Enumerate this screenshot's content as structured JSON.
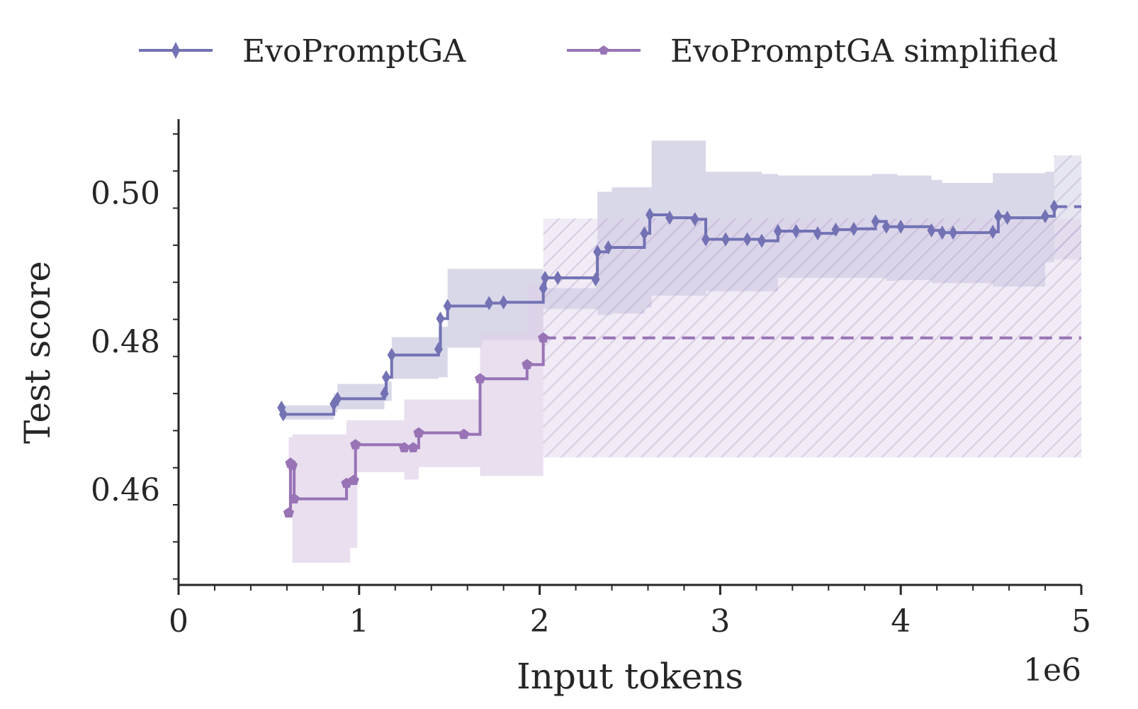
{
  "chart_data": {
    "type": "line",
    "xlabel": "Input tokens",
    "ylabel": "Test score",
    "x_offset_label": "1e6",
    "xlim": [
      0,
      5
    ],
    "ylim": [
      0.4472,
      0.51
    ],
    "x_ticks": [
      0,
      1,
      2,
      3,
      4,
      5
    ],
    "x_tick_labels": [
      "0",
      "1",
      "2",
      "3",
      "4",
      "5"
    ],
    "y_ticks": [
      0.46,
      0.48,
      0.5
    ],
    "y_tick_labels": [
      "0.46",
      "0.48",
      "0.50"
    ],
    "legend_position": "top",
    "series": [
      {
        "name": "EvoPromptGA",
        "color": "#7272b4",
        "band_color": "#c8c8e0",
        "marker": "diamond",
        "x": [
          0.57,
          0.58,
          0.86,
          0.88,
          1.14,
          1.15,
          1.18,
          1.44,
          1.45,
          1.49,
          1.72,
          1.8,
          2.02,
          2.03,
          2.1,
          2.31,
          2.32,
          2.38,
          2.58,
          2.61,
          2.72,
          2.86,
          2.92,
          3.03,
          3.15,
          3.23,
          3.32,
          3.42,
          3.54,
          3.64,
          3.74,
          3.86,
          3.92,
          4.0,
          4.17,
          4.23,
          4.29,
          4.51,
          4.54,
          4.59,
          4.8,
          4.85
        ],
        "y": [
          0.4711,
          0.4702,
          0.4716,
          0.4723,
          0.473,
          0.4752,
          0.4782,
          0.479,
          0.4831,
          0.4848,
          0.4852,
          0.4853,
          0.4872,
          0.4886,
          0.4886,
          0.4884,
          0.4921,
          0.4927,
          0.4946,
          0.4971,
          0.4967,
          0.4965,
          0.4938,
          0.4938,
          0.4938,
          0.4936,
          0.4949,
          0.4949,
          0.4946,
          0.4951,
          0.4952,
          0.4962,
          0.4955,
          0.4955,
          0.495,
          0.4947,
          0.4947,
          0.4948,
          0.4969,
          0.4967,
          0.4969,
          0.4982
        ],
        "extension_end": 5.0,
        "band": [
          [
            0.57,
            0.4695,
            0.4714
          ],
          [
            0.86,
            0.4705,
            0.473
          ],
          [
            0.88,
            0.4709,
            0.4743
          ],
          [
            1.14,
            0.472,
            0.4746
          ],
          [
            1.18,
            0.475,
            0.4806
          ],
          [
            1.44,
            0.4752,
            0.482
          ],
          [
            1.49,
            0.4792,
            0.4898
          ],
          [
            1.68,
            0.4802,
            0.4898
          ],
          [
            2.02,
            0.4844,
            0.4872
          ],
          [
            2.31,
            0.4844,
            0.4918
          ],
          [
            2.32,
            0.4836,
            0.5002
          ],
          [
            2.4,
            0.4838,
            0.5008
          ],
          [
            2.58,
            0.4846,
            0.5008
          ],
          [
            2.62,
            0.4862,
            0.5071
          ],
          [
            2.72,
            0.4862,
            0.5071
          ],
          [
            2.92,
            0.4868,
            0.5029
          ],
          [
            3.23,
            0.4868,
            0.5026
          ],
          [
            3.32,
            0.4886,
            0.5024
          ],
          [
            3.84,
            0.4886,
            0.5026
          ],
          [
            3.92,
            0.4882,
            0.5026
          ],
          [
            3.98,
            0.4883,
            0.5024
          ],
          [
            4.17,
            0.4879,
            0.5018
          ],
          [
            4.23,
            0.4879,
            0.5014
          ],
          [
            4.51,
            0.4874,
            0.5027
          ],
          [
            4.8,
            0.4907,
            0.5029
          ],
          [
            4.85,
            0.4911,
            0.5051
          ],
          [
            5.0,
            0.4911,
            0.5051
          ]
        ]
      },
      {
        "name": "EvoPromptGA simplified",
        "color": "#9873b5",
        "band_color": "#e0d2e8",
        "marker": "pentagon",
        "x": [
          0.61,
          0.62,
          0.63,
          0.64,
          0.93,
          0.97,
          0.98,
          1.25,
          1.3,
          1.33,
          1.58,
          1.67,
          1.93,
          2.02
        ],
        "y": [
          0.4569,
          0.4636,
          0.4633,
          0.4588,
          0.4609,
          0.4613,
          0.4661,
          0.4657,
          0.4657,
          0.4677,
          0.4675,
          0.475,
          0.4769,
          0.4805
        ],
        "extension_end": 5.0,
        "band": [
          [
            0.61,
            0.4566,
            0.4671
          ],
          [
            0.63,
            0.4502,
            0.4675
          ],
          [
            0.93,
            0.4502,
            0.4694
          ],
          [
            0.95,
            0.4522,
            0.4694
          ],
          [
            0.99,
            0.4624,
            0.4694
          ],
          [
            1.25,
            0.4614,
            0.4722
          ],
          [
            1.33,
            0.4631,
            0.4722
          ],
          [
            1.58,
            0.4631,
            0.4722
          ],
          [
            1.67,
            0.4619,
            0.4812
          ],
          [
            1.93,
            0.4619,
            0.4877
          ],
          [
            2.02,
            0.4644,
            0.4966
          ],
          [
            5.0,
            0.4644,
            0.4966
          ]
        ]
      }
    ]
  }
}
